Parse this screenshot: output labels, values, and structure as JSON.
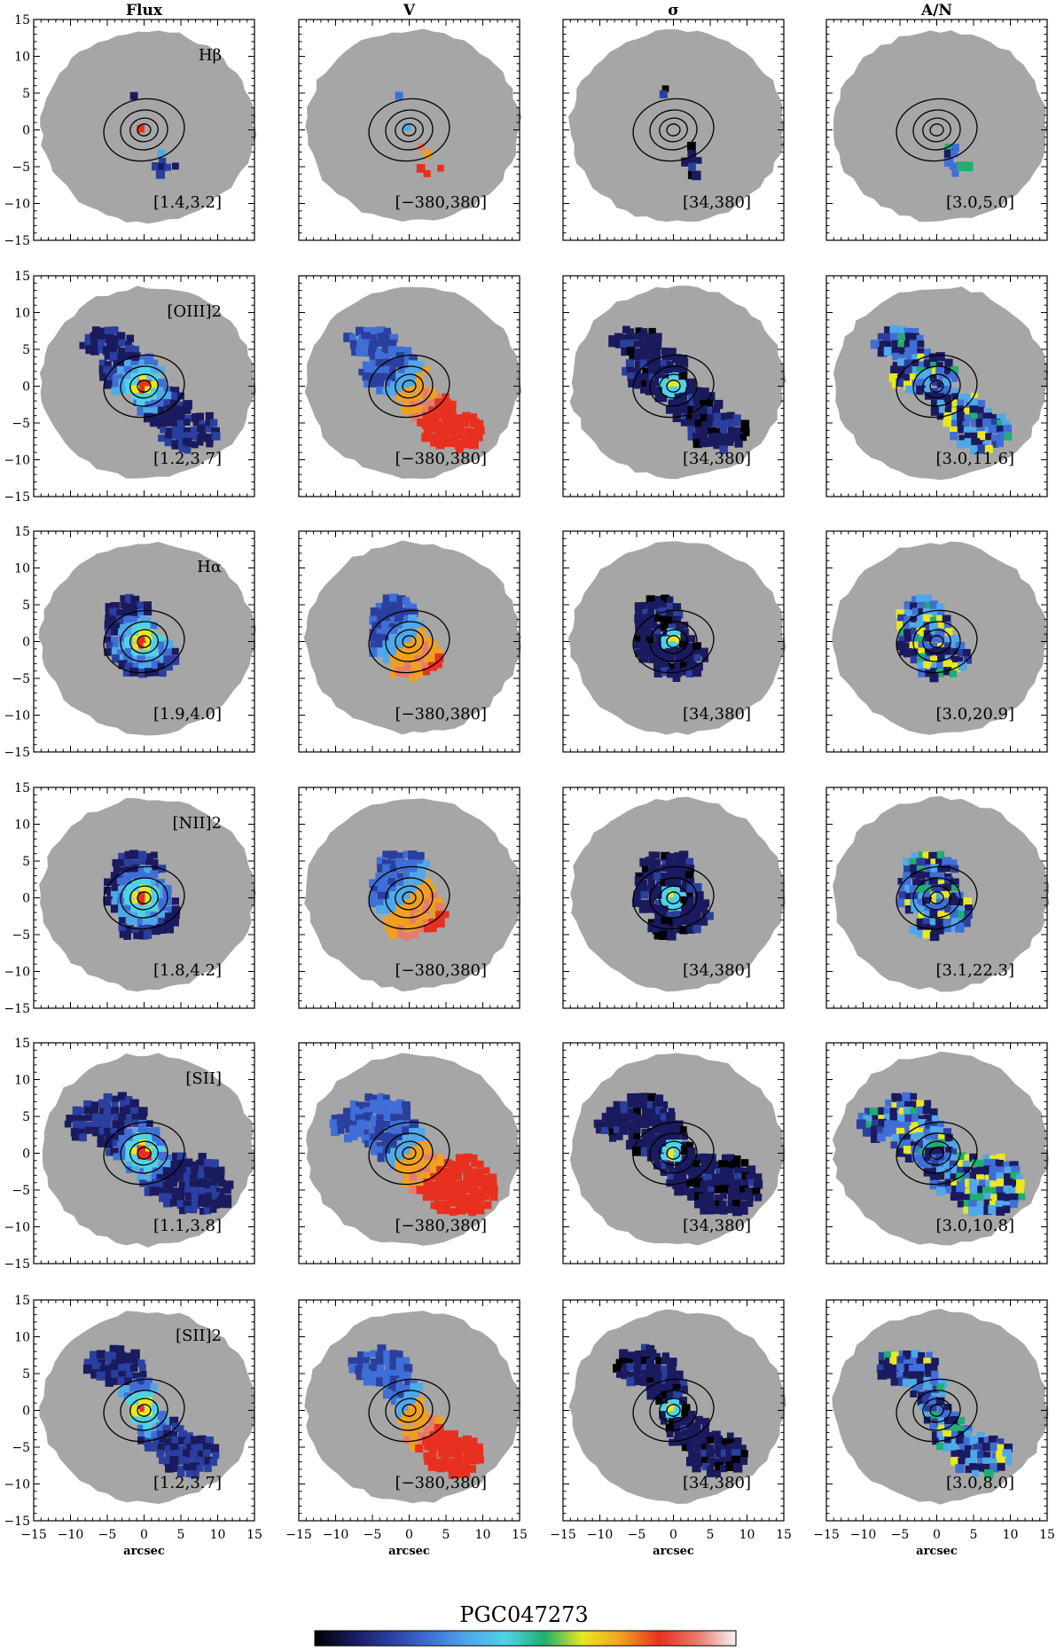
{
  "figure_title": "PGC047273",
  "column_headers": [
    "Flux",
    "V",
    "σ",
    "A/N"
  ],
  "x_axis_label": "arcsec",
  "colors": {
    "background_mask": "#a6a6a6",
    "contour": "#000000",
    "colormap": [
      "#000000",
      "#1a1a5e",
      "#2a3f9e",
      "#3f6fd6",
      "#4fa8e8",
      "#4fd2e8",
      "#1fae6f",
      "#e8e820",
      "#f0a020",
      "#e83020",
      "#e87a6a",
      "#f2f2f2"
    ]
  },
  "chart_data": {
    "type": "heatmap",
    "grid": {
      "rows": 6,
      "cols": 4
    },
    "axes": {
      "xlim": [
        -15,
        15
      ],
      "ylim": [
        -15,
        15
      ],
      "xticks": [
        -15,
        -10,
        -5,
        0,
        5,
        10,
        15
      ],
      "yticks": [
        -15,
        -10,
        -5,
        0,
        5,
        10,
        15
      ],
      "xlabel": "arcsec"
    },
    "rows": [
      {
        "line": "Hβ",
        "ranges": [
          "[1.4,3.2]",
          "[−380,380]",
          "[34,380]",
          "[3.0,5.0]"
        ]
      },
      {
        "line": "[OIII]2",
        "ranges": [
          "[1.2,3.7]",
          "[−380,380]",
          "[34,380]",
          "[3.0,11.6]"
        ]
      },
      {
        "line": "Hα",
        "ranges": [
          "[1.9,4.0]",
          "[−380,380]",
          "[34,380]",
          "[3.0,20.9]"
        ]
      },
      {
        "line": "[NII]2",
        "ranges": [
          "[1.8,4.2]",
          "[−380,380]",
          "[34,380]",
          "[3.1,22.3]"
        ]
      },
      {
        "line": "[SII]",
        "ranges": [
          "[1.1,3.8]",
          "[−380,380]",
          "[34,380]",
          "[3.0,10.8]"
        ]
      },
      {
        "line": "[SII]2",
        "ranges": [
          "[1.2,3.7]",
          "[−380,380]",
          "[34,380]",
          "[3.0,8.0]"
        ]
      }
    ]
  }
}
